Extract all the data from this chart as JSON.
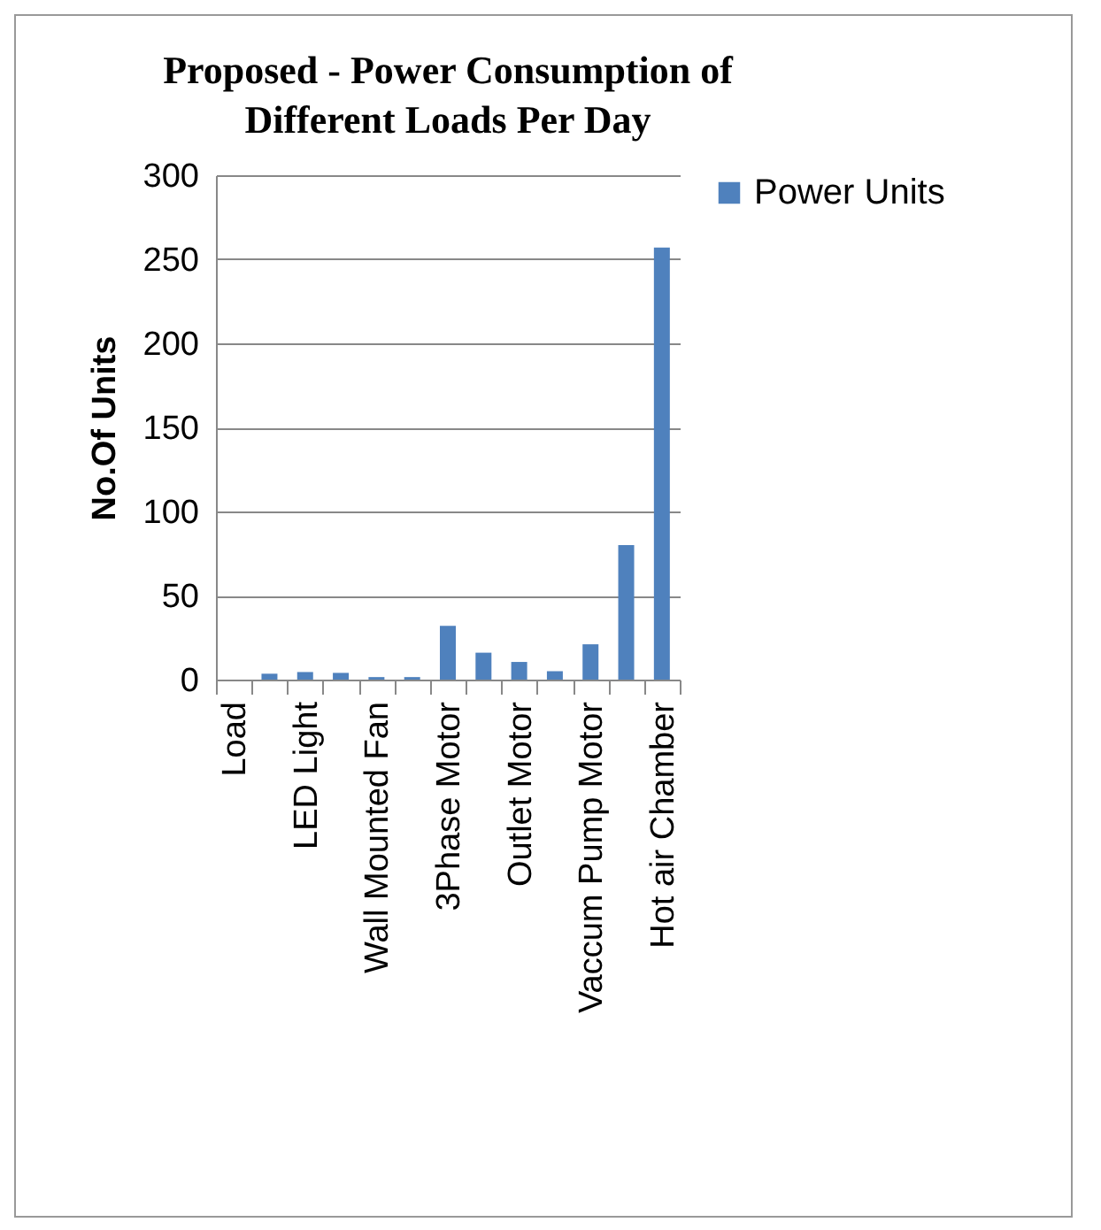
{
  "chart_data": {
    "type": "bar",
    "title": "Proposed - Power Consumption of Different Loads Per Day",
    "ylabel": "No.Of Units",
    "categories": [
      "Load",
      null,
      "LED Light",
      null,
      "Wall Mounted Fan",
      null,
      "3Phase Motor",
      null,
      "Outlet Motor",
      null,
      "Vaccum Pump Motor",
      null,
      "Hot air Chamber"
    ],
    "series": [
      {
        "name": "Power Units",
        "color": "#4f81bd",
        "values": [
          null,
          3.5,
          4.5,
          4,
          1.5,
          1.5,
          32,
          16,
          10.5,
          5,
          21,
          80,
          257
        ]
      }
    ],
    "ylim": [
      0,
      300
    ],
    "yticks": [
      0,
      50,
      100,
      150,
      200,
      250,
      300
    ],
    "grid": "y",
    "legend": "right"
  }
}
